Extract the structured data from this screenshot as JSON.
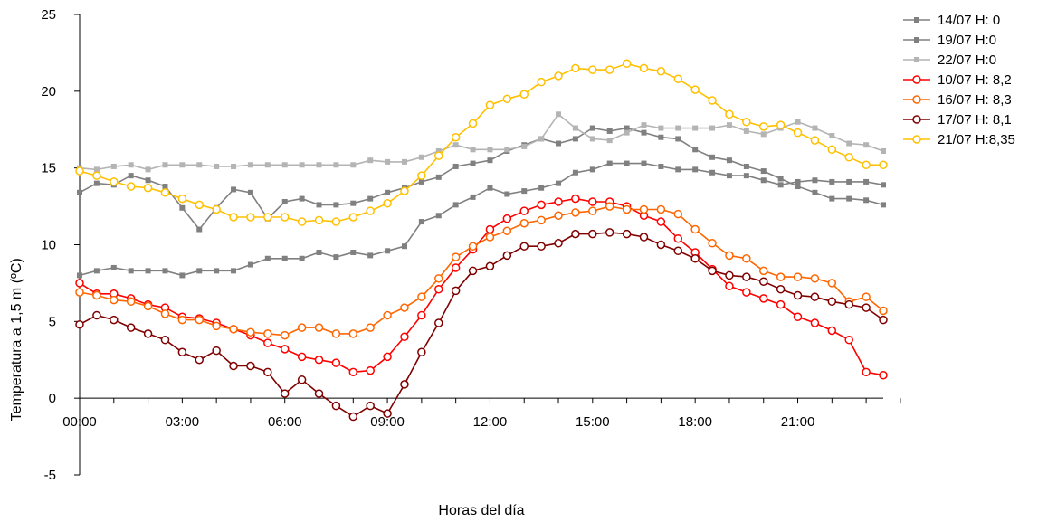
{
  "chart_data": {
    "type": "line",
    "title": "",
    "xlabel": "Horas del día",
    "ylabel": "Temperatura a 1,5 m (ºC)",
    "ylim": [
      -5,
      25
    ],
    "yticks": [
      -5,
      0,
      5,
      10,
      15,
      20,
      25
    ],
    "xlim": [
      0,
      23.5
    ],
    "xticks": [
      {
        "x": 0,
        "label": "00:00"
      },
      {
        "x": 3,
        "label": "03:00"
      },
      {
        "x": 6,
        "label": "06:00"
      },
      {
        "x": 9,
        "label": "09:00"
      },
      {
        "x": 12,
        "label": "12:00"
      },
      {
        "x": 15,
        "label": "15:00"
      },
      {
        "x": 18,
        "label": "18:00"
      },
      {
        "x": 21,
        "label": "21:00"
      }
    ],
    "x_interval_hours": 0.5,
    "grid": false,
    "legend": "right",
    "series": [
      {
        "name": "14/07 H: 0",
        "color": "#808080",
        "marker": "square",
        "values": [
          13.4,
          14.0,
          13.9,
          14.5,
          14.2,
          13.8,
          12.4,
          11.0,
          12.4,
          13.6,
          13.4,
          11.7,
          12.8,
          13.0,
          12.6,
          12.6,
          12.7,
          13.0,
          13.4,
          13.7,
          14.1,
          14.4,
          15.1,
          15.3,
          15.5,
          16.1,
          16.5,
          16.9,
          16.6,
          16.9,
          17.6,
          17.4,
          17.6,
          17.3,
          17.0,
          16.9,
          16.2,
          15.7,
          15.5,
          15.1,
          14.8,
          14.3,
          13.8,
          13.4,
          13.0,
          13.0,
          12.9,
          12.6
        ]
      },
      {
        "name": "19/07 H:0",
        "color": "#808080",
        "marker": "square",
        "values": [
          8.0,
          8.3,
          8.5,
          8.3,
          8.3,
          8.3,
          8.0,
          8.3,
          8.3,
          8.3,
          8.7,
          9.1,
          9.1,
          9.1,
          9.5,
          9.2,
          9.5,
          9.3,
          9.6,
          9.9,
          11.5,
          11.9,
          12.6,
          13.1,
          13.7,
          13.3,
          13.5,
          13.7,
          14.0,
          14.7,
          14.9,
          15.3,
          15.3,
          15.3,
          15.1,
          14.9,
          14.9,
          14.7,
          14.5,
          14.5,
          14.2,
          13.9,
          14.1,
          14.2,
          14.1,
          14.1,
          14.1,
          13.9
        ]
      },
      {
        "name": "22/07 H:0",
        "color": "#b4b4b4",
        "marker": "square",
        "values": [
          15.0,
          14.9,
          15.1,
          15.2,
          14.9,
          15.2,
          15.2,
          15.2,
          15.1,
          15.1,
          15.2,
          15.2,
          15.2,
          15.2,
          15.2,
          15.2,
          15.2,
          15.5,
          15.4,
          15.4,
          15.7,
          16.1,
          16.5,
          16.2,
          16.2,
          16.2,
          16.4,
          16.9,
          18.5,
          17.6,
          16.9,
          16.8,
          17.3,
          17.8,
          17.6,
          17.6,
          17.6,
          17.6,
          17.8,
          17.4,
          17.2,
          17.6,
          18.0,
          17.6,
          17.1,
          16.6,
          16.5,
          16.1
        ]
      },
      {
        "name": "10/07 H: 8,2",
        "color": "#ff0000",
        "marker": "circle",
        "values": [
          7.5,
          6.8,
          6.8,
          6.5,
          6.1,
          5.9,
          5.3,
          5.2,
          4.9,
          4.5,
          4.1,
          3.6,
          3.2,
          2.7,
          2.5,
          2.3,
          1.7,
          1.8,
          2.7,
          4.0,
          5.4,
          7.1,
          8.5,
          9.7,
          11.0,
          11.7,
          12.2,
          12.6,
          12.8,
          13.0,
          12.8,
          12.8,
          12.5,
          11.9,
          11.5,
          10.4,
          9.5,
          8.4,
          7.3,
          6.9,
          6.5,
          6.1,
          5.3,
          4.9,
          4.4,
          3.8,
          1.7,
          1.5
        ]
      },
      {
        "name": "16/07 H: 8,3",
        "color": "#ff6600",
        "marker": "circle",
        "values": [
          6.9,
          6.7,
          6.4,
          6.3,
          6.0,
          5.5,
          5.1,
          5.1,
          4.7,
          4.5,
          4.3,
          4.2,
          4.1,
          4.6,
          4.6,
          4.2,
          4.2,
          4.6,
          5.4,
          5.9,
          6.6,
          7.8,
          9.2,
          9.9,
          10.5,
          10.9,
          11.4,
          11.6,
          11.9,
          12.1,
          12.2,
          12.5,
          12.3,
          12.3,
          12.3,
          12.0,
          11.0,
          10.1,
          9.3,
          9.1,
          8.3,
          7.9,
          7.9,
          7.8,
          7.5,
          6.3,
          6.6,
          5.7
        ]
      },
      {
        "name": "17/07 H: 8,1",
        "color": "#800000",
        "marker": "circle",
        "values": [
          4.8,
          5.4,
          5.1,
          4.6,
          4.2,
          3.8,
          3.0,
          2.5,
          3.1,
          2.1,
          2.1,
          1.7,
          0.3,
          1.2,
          0.3,
          -0.5,
          -1.2,
          -0.5,
          -1.0,
          0.9,
          3.0,
          4.9,
          7.0,
          8.3,
          8.6,
          9.3,
          9.9,
          9.9,
          10.1,
          10.7,
          10.7,
          10.8,
          10.7,
          10.5,
          10.0,
          9.6,
          9.1,
          8.3,
          8.0,
          7.9,
          7.6,
          7.1,
          6.7,
          6.6,
          6.3,
          6.1,
          5.9,
          5.1
        ]
      },
      {
        "name": "21/07 H:8,35",
        "color": "#ffc000",
        "marker": "circle",
        "values": [
          14.8,
          14.5,
          14.1,
          13.8,
          13.7,
          13.4,
          13.0,
          12.6,
          12.3,
          11.8,
          11.8,
          11.8,
          11.8,
          11.5,
          11.6,
          11.5,
          11.8,
          12.2,
          12.7,
          13.5,
          14.5,
          15.8,
          17.0,
          17.9,
          19.1,
          19.5,
          19.8,
          20.6,
          21.0,
          21.5,
          21.4,
          21.4,
          21.8,
          21.5,
          21.3,
          20.8,
          20.1,
          19.4,
          18.5,
          18.0,
          17.7,
          17.8,
          17.3,
          16.8,
          16.2,
          15.7,
          15.2,
          15.2
        ]
      }
    ]
  }
}
